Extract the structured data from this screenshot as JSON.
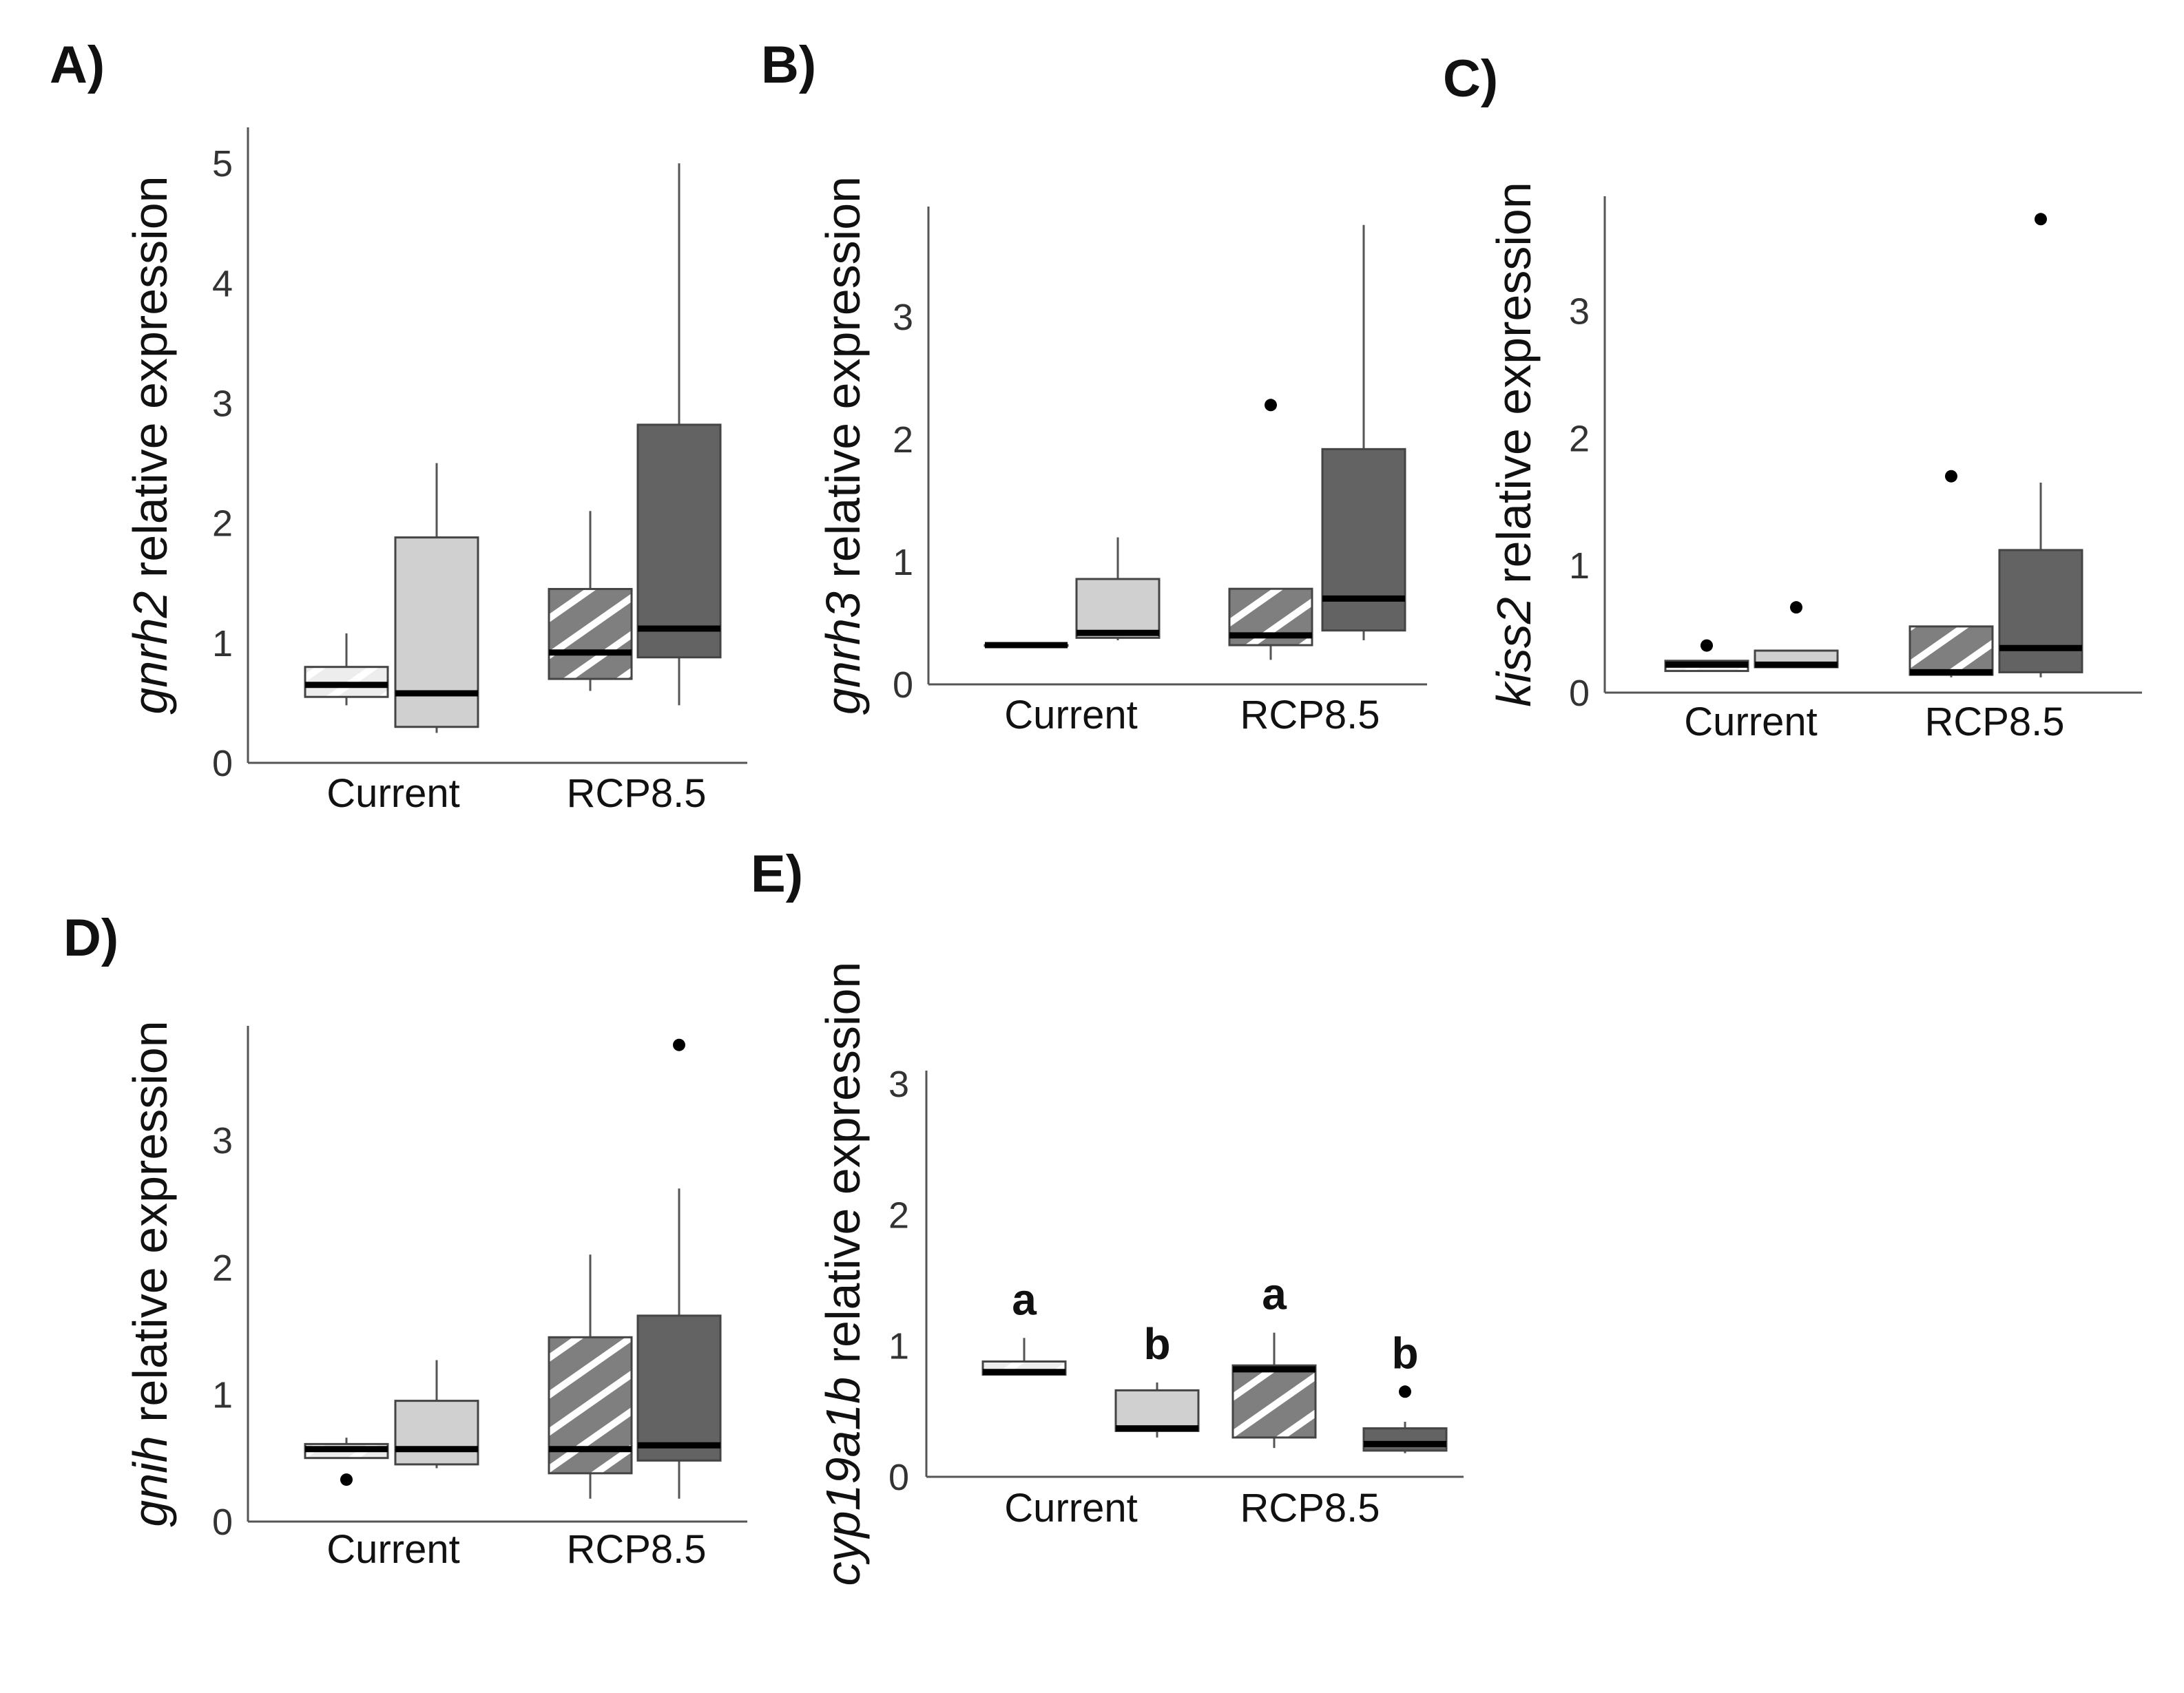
{
  "colors": {
    "light": "#ededed",
    "light_gray": "#d0d0d0",
    "hatched_base": "#7f7f7f",
    "hatched_stripe": "#ffffff",
    "dark": "#636363"
  },
  "chart_data": [
    {
      "type": "box",
      "panel": "A)",
      "ylabel_gene": "gnrh2",
      "ylabel_rest": " relative expression",
      "categories": [
        "Current",
        "RCP8.5"
      ],
      "yticks": [
        0,
        1,
        2,
        3,
        4,
        5
      ],
      "ylim": [
        0,
        5.3
      ],
      "boxes": [
        {
          "group": 0,
          "fill": "light_hatched",
          "whisker_low": 0.48,
          "q1": 0.55,
          "median": 0.65,
          "q3": 0.8,
          "whisker_high": 1.08,
          "outliers": []
        },
        {
          "group": 0,
          "fill": "light_gray",
          "whisker_low": 0.25,
          "q1": 0.3,
          "median": 0.58,
          "q3": 1.88,
          "whisker_high": 2.5,
          "outliers": []
        },
        {
          "group": 1,
          "fill": "hatched",
          "whisker_low": 0.6,
          "q1": 0.7,
          "median": 0.92,
          "q3": 1.45,
          "whisker_high": 2.1,
          "outliers": []
        },
        {
          "group": 1,
          "fill": "dark",
          "whisker_low": 0.48,
          "q1": 0.88,
          "median": 1.12,
          "q3": 2.82,
          "whisker_high": 5.0,
          "outliers": []
        }
      ],
      "letters": []
    },
    {
      "type": "box",
      "panel": "B)",
      "ylabel_gene": "gnrh3",
      "ylabel_rest": " relative expression",
      "categories": [
        "Current",
        "RCP8.5"
      ],
      "yticks": [
        0,
        1,
        2,
        3
      ],
      "ylim": [
        0,
        3.9
      ],
      "boxes": [
        {
          "group": 0,
          "fill": "light_hatched",
          "whisker_low": 0.32,
          "q1": 0.32,
          "median": 0.32,
          "q3": 0.32,
          "whisker_high": 0.32,
          "outliers": []
        },
        {
          "group": 0,
          "fill": "light_gray",
          "whisker_low": 0.36,
          "q1": 0.38,
          "median": 0.42,
          "q3": 0.86,
          "whisker_high": 1.2,
          "outliers": []
        },
        {
          "group": 1,
          "fill": "hatched",
          "whisker_low": 0.2,
          "q1": 0.32,
          "median": 0.4,
          "q3": 0.78,
          "whisker_high": 0.78,
          "outliers": [
            2.28
          ]
        },
        {
          "group": 1,
          "fill": "dark",
          "whisker_low": 0.36,
          "q1": 0.44,
          "median": 0.7,
          "q3": 1.92,
          "whisker_high": 3.75,
          "outliers": []
        }
      ],
      "letters": []
    },
    {
      "type": "box",
      "panel": "C)",
      "ylabel_gene": "kiss2",
      "ylabel_rest": " relative expression",
      "categories": [
        "Current",
        "RCP8.5"
      ],
      "yticks": [
        0,
        1,
        2,
        3
      ],
      "ylim": [
        0,
        3.9
      ],
      "boxes": [
        {
          "group": 0,
          "fill": "light_hatched",
          "whisker_low": 0.17,
          "q1": 0.17,
          "median": 0.22,
          "q3": 0.25,
          "whisker_high": 0.25,
          "outliers": [
            0.37
          ]
        },
        {
          "group": 0,
          "fill": "light_gray",
          "whisker_low": 0.2,
          "q1": 0.2,
          "median": 0.22,
          "q3": 0.33,
          "whisker_high": 0.33,
          "outliers": [
            0.67
          ]
        },
        {
          "group": 1,
          "fill": "hatched",
          "whisker_low": 0.12,
          "q1": 0.14,
          "median": 0.16,
          "q3": 0.52,
          "whisker_high": 0.52,
          "outliers": [
            1.7
          ]
        },
        {
          "group": 1,
          "fill": "dark",
          "whisker_low": 0.12,
          "q1": 0.16,
          "median": 0.35,
          "q3": 1.12,
          "whisker_high": 1.65,
          "outliers": [
            3.72
          ]
        }
      ],
      "letters": []
    },
    {
      "type": "box",
      "panel": "D)",
      "ylabel_gene": "gnih",
      "ylabel_rest": " relative expression",
      "categories": [
        "Current",
        "RCP8.5"
      ],
      "yticks": [
        0,
        1,
        2,
        3
      ],
      "ylim": [
        0,
        3.9
      ],
      "boxes": [
        {
          "group": 0,
          "fill": "light_hatched",
          "whisker_low": 0.5,
          "q1": 0.5,
          "median": 0.57,
          "q3": 0.61,
          "whisker_high": 0.66,
          "outliers": [
            0.33
          ]
        },
        {
          "group": 0,
          "fill": "light_gray",
          "whisker_low": 0.42,
          "q1": 0.45,
          "median": 0.57,
          "q3": 0.95,
          "whisker_high": 1.27,
          "outliers": []
        },
        {
          "group": 1,
          "fill": "hatched",
          "whisker_low": 0.18,
          "q1": 0.38,
          "median": 0.57,
          "q3": 1.45,
          "whisker_high": 2.1,
          "outliers": []
        },
        {
          "group": 1,
          "fill": "dark",
          "whisker_low": 0.18,
          "q1": 0.48,
          "median": 0.6,
          "q3": 1.62,
          "whisker_high": 2.62,
          "outliers": [
            3.75
          ]
        }
      ],
      "letters": []
    },
    {
      "type": "box",
      "panel": "E)",
      "ylabel_gene": "cyp19a1b",
      "ylabel_rest": " relative expression",
      "categories": [
        "Current",
        "RCP8.5"
      ],
      "yticks": [
        0,
        1,
        2,
        3
      ],
      "ylim": [
        0,
        3.1
      ],
      "boxes": [
        {
          "group": 0,
          "fill": "light_hatched",
          "whisker_low": 0.78,
          "q1": 0.78,
          "median": 0.8,
          "q3": 0.88,
          "whisker_high": 1.06,
          "outliers": []
        },
        {
          "group": 0,
          "fill": "light_gray",
          "whisker_low": 0.3,
          "q1": 0.35,
          "median": 0.37,
          "q3": 0.66,
          "whisker_high": 0.72,
          "outliers": []
        },
        {
          "group": 1,
          "fill": "hatched",
          "whisker_low": 0.22,
          "q1": 0.3,
          "median": 0.82,
          "q3": 0.85,
          "whisker_high": 1.1,
          "outliers": []
        },
        {
          "group": 1,
          "fill": "dark",
          "whisker_low": 0.18,
          "q1": 0.2,
          "median": 0.25,
          "q3": 0.37,
          "whisker_high": 0.42,
          "outliers": [
            0.65
          ]
        }
      ],
      "letters": [
        "a",
        "b",
        "a",
        "b"
      ]
    }
  ]
}
